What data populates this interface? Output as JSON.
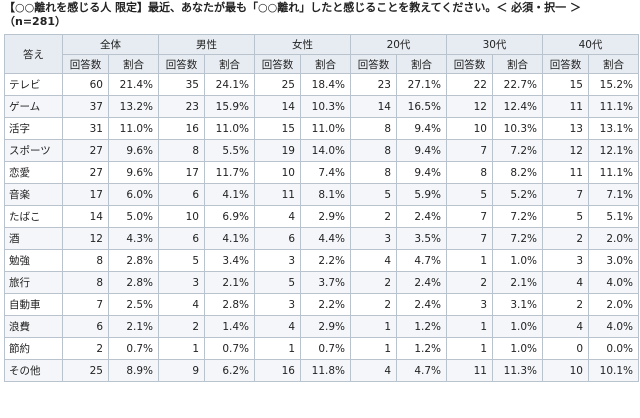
{
  "question": {
    "title": "【○○離れを感じる人 限定】最近、あなたが最も「○○離れ」したと感じることを教えてください。＜ 必須・択一 ＞",
    "n": "（n=281）"
  },
  "table": {
    "corner": "答え",
    "groups": [
      "全体",
      "男性",
      "女性",
      "20代",
      "30代",
      "40代"
    ],
    "subheaders": {
      "count": "回答数",
      "ratio": "割合"
    },
    "rows": [
      {
        "label": "テレビ",
        "cells": [
          [
            "60",
            "21.4%"
          ],
          [
            "35",
            "24.1%"
          ],
          [
            "25",
            "18.4%"
          ],
          [
            "23",
            "27.1%"
          ],
          [
            "22",
            "22.7%"
          ],
          [
            "15",
            "15.2%"
          ]
        ]
      },
      {
        "label": "ゲーム",
        "cells": [
          [
            "37",
            "13.2%"
          ],
          [
            "23",
            "15.9%"
          ],
          [
            "14",
            "10.3%"
          ],
          [
            "14",
            "16.5%"
          ],
          [
            "12",
            "12.4%"
          ],
          [
            "11",
            "11.1%"
          ]
        ]
      },
      {
        "label": "活字",
        "cells": [
          [
            "31",
            "11.0%"
          ],
          [
            "16",
            "11.0%"
          ],
          [
            "15",
            "11.0%"
          ],
          [
            "8",
            "9.4%"
          ],
          [
            "10",
            "10.3%"
          ],
          [
            "13",
            "13.1%"
          ]
        ]
      },
      {
        "label": "スポーツ",
        "cells": [
          [
            "27",
            "9.6%"
          ],
          [
            "8",
            "5.5%"
          ],
          [
            "19",
            "14.0%"
          ],
          [
            "8",
            "9.4%"
          ],
          [
            "7",
            "7.2%"
          ],
          [
            "12",
            "12.1%"
          ]
        ]
      },
      {
        "label": "恋愛",
        "cells": [
          [
            "27",
            "9.6%"
          ],
          [
            "17",
            "11.7%"
          ],
          [
            "10",
            "7.4%"
          ],
          [
            "8",
            "9.4%"
          ],
          [
            "8",
            "8.2%"
          ],
          [
            "11",
            "11.1%"
          ]
        ]
      },
      {
        "label": "音楽",
        "cells": [
          [
            "17",
            "6.0%"
          ],
          [
            "6",
            "4.1%"
          ],
          [
            "11",
            "8.1%"
          ],
          [
            "5",
            "5.9%"
          ],
          [
            "5",
            "5.2%"
          ],
          [
            "7",
            "7.1%"
          ]
        ]
      },
      {
        "label": "たばこ",
        "cells": [
          [
            "14",
            "5.0%"
          ],
          [
            "10",
            "6.9%"
          ],
          [
            "4",
            "2.9%"
          ],
          [
            "2",
            "2.4%"
          ],
          [
            "7",
            "7.2%"
          ],
          [
            "5",
            "5.1%"
          ]
        ]
      },
      {
        "label": "酒",
        "cells": [
          [
            "12",
            "4.3%"
          ],
          [
            "6",
            "4.1%"
          ],
          [
            "6",
            "4.4%"
          ],
          [
            "3",
            "3.5%"
          ],
          [
            "7",
            "7.2%"
          ],
          [
            "2",
            "2.0%"
          ]
        ]
      },
      {
        "label": "勉強",
        "cells": [
          [
            "8",
            "2.8%"
          ],
          [
            "5",
            "3.4%"
          ],
          [
            "3",
            "2.2%"
          ],
          [
            "4",
            "4.7%"
          ],
          [
            "1",
            "1.0%"
          ],
          [
            "3",
            "3.0%"
          ]
        ]
      },
      {
        "label": "旅行",
        "cells": [
          [
            "8",
            "2.8%"
          ],
          [
            "3",
            "2.1%"
          ],
          [
            "5",
            "3.7%"
          ],
          [
            "2",
            "2.4%"
          ],
          [
            "2",
            "2.1%"
          ],
          [
            "4",
            "4.0%"
          ]
        ]
      },
      {
        "label": "自動車",
        "cells": [
          [
            "7",
            "2.5%"
          ],
          [
            "4",
            "2.8%"
          ],
          [
            "3",
            "2.2%"
          ],
          [
            "2",
            "2.4%"
          ],
          [
            "3",
            "3.1%"
          ],
          [
            "2",
            "2.0%"
          ]
        ]
      },
      {
        "label": "浪費",
        "cells": [
          [
            "6",
            "2.1%"
          ],
          [
            "2",
            "1.4%"
          ],
          [
            "4",
            "2.9%"
          ],
          [
            "1",
            "1.2%"
          ],
          [
            "1",
            "1.0%"
          ],
          [
            "4",
            "4.0%"
          ]
        ]
      },
      {
        "label": "節約",
        "cells": [
          [
            "2",
            "0.7%"
          ],
          [
            "1",
            "0.7%"
          ],
          [
            "1",
            "0.7%"
          ],
          [
            "1",
            "1.2%"
          ],
          [
            "1",
            "1.0%"
          ],
          [
            "0",
            "0.0%"
          ]
        ]
      },
      {
        "label": "その他",
        "cells": [
          [
            "25",
            "8.9%"
          ],
          [
            "9",
            "6.2%"
          ],
          [
            "16",
            "11.8%"
          ],
          [
            "4",
            "4.7%"
          ],
          [
            "11",
            "11.3%"
          ],
          [
            "10",
            "10.1%"
          ]
        ]
      }
    ]
  },
  "colors": {
    "header_bg": "#e7ecf2",
    "border": "#b9c3cd",
    "stripe": "#f4f6f9"
  }
}
